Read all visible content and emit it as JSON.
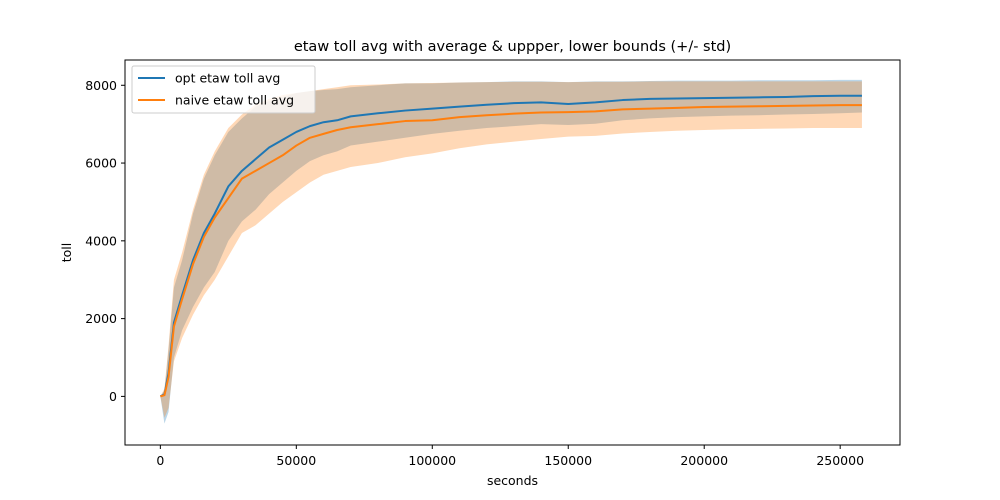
{
  "chart_data": {
    "type": "line",
    "title": "etaw toll avg with average & uppper, lower bounds (+/- std)",
    "xlabel": "seconds",
    "ylabel": "toll",
    "xlim": [
      -13000,
      272000
    ],
    "ylim": [
      -1250,
      8650
    ],
    "xticks": [
      0,
      50000,
      100000,
      150000,
      200000,
      250000
    ],
    "yticks": [
      0,
      2000,
      4000,
      6000,
      8000
    ],
    "grid": false,
    "legend_position": "top-left",
    "series": [
      {
        "name": "opt etaw toll avg",
        "color": "#1f77b4",
        "band_color": "#1f77b4",
        "band_opacity": 0.3,
        "x": [
          0,
          1500,
          3000,
          5000,
          8000,
          12000,
          16000,
          20000,
          25000,
          30000,
          35000,
          40000,
          45000,
          50000,
          55000,
          60000,
          65000,
          70000,
          80000,
          90000,
          100000,
          110000,
          120000,
          130000,
          140000,
          150000,
          160000,
          170000,
          180000,
          190000,
          200000,
          210000,
          220000,
          230000,
          240000,
          250000,
          258000
        ],
        "mean": [
          0,
          50,
          600,
          1900,
          2600,
          3500,
          4200,
          4700,
          5400,
          5800,
          6100,
          6400,
          6600,
          6800,
          6950,
          7050,
          7100,
          7200,
          7280,
          7350,
          7400,
          7450,
          7500,
          7540,
          7560,
          7520,
          7560,
          7620,
          7650,
          7660,
          7670,
          7680,
          7690,
          7700,
          7720,
          7730,
          7730
        ],
        "upper": [
          0,
          150,
          1200,
          2800,
          3500,
          4700,
          5600,
          6200,
          6800,
          7150,
          7450,
          7600,
          7700,
          7800,
          7850,
          7880,
          7900,
          7950,
          8000,
          8050,
          8050,
          8070,
          8080,
          8100,
          8100,
          8080,
          8100,
          8100,
          8110,
          8120,
          8120,
          8120,
          8130,
          8130,
          8130,
          8140,
          8140
        ],
        "lower": [
          0,
          -700,
          -400,
          1000,
          1700,
          2300,
          2800,
          3200,
          4000,
          4500,
          4800,
          5200,
          5500,
          5800,
          6050,
          6200,
          6300,
          6450,
          6550,
          6650,
          6750,
          6830,
          6900,
          6950,
          7000,
          6980,
          7010,
          7100,
          7150,
          7180,
          7200,
          7220,
          7230,
          7250,
          7260,
          7280,
          7300
        ]
      },
      {
        "name": "naive etaw toll avg",
        "color": "#ff7f0e",
        "band_color": "#ff7f0e",
        "band_opacity": 0.3,
        "x": [
          0,
          1500,
          3000,
          5000,
          8000,
          12000,
          16000,
          20000,
          25000,
          30000,
          35000,
          40000,
          45000,
          50000,
          55000,
          60000,
          65000,
          70000,
          80000,
          90000,
          100000,
          110000,
          120000,
          130000,
          140000,
          150000,
          160000,
          170000,
          180000,
          190000,
          200000,
          210000,
          220000,
          230000,
          240000,
          250000,
          258000
        ],
        "mean": [
          0,
          30,
          500,
          1800,
          2500,
          3400,
          4100,
          4600,
          5100,
          5600,
          5800,
          6000,
          6200,
          6450,
          6650,
          6750,
          6850,
          6920,
          7000,
          7080,
          7100,
          7180,
          7230,
          7270,
          7300,
          7310,
          7330,
          7380,
          7400,
          7420,
          7440,
          7450,
          7460,
          7470,
          7480,
          7490,
          7490
        ],
        "upper": [
          0,
          200,
          1300,
          3000,
          3700,
          4800,
          5700,
          6300,
          6900,
          7250,
          7500,
          7650,
          7750,
          7800,
          7850,
          7900,
          7950,
          8000,
          8020,
          8050,
          8060,
          8070,
          8080,
          8090,
          8090,
          8080,
          8090,
          8090,
          8100,
          8100,
          8100,
          8100,
          8100,
          8100,
          8100,
          8100,
          8100
        ],
        "lower": [
          0,
          -550,
          -300,
          900,
          1500,
          2100,
          2600,
          3000,
          3600,
          4200,
          4400,
          4700,
          5000,
          5250,
          5500,
          5700,
          5800,
          5900,
          6000,
          6150,
          6250,
          6380,
          6480,
          6550,
          6620,
          6680,
          6700,
          6760,
          6800,
          6830,
          6850,
          6870,
          6880,
          6890,
          6900,
          6900,
          6900
        ]
      }
    ]
  }
}
